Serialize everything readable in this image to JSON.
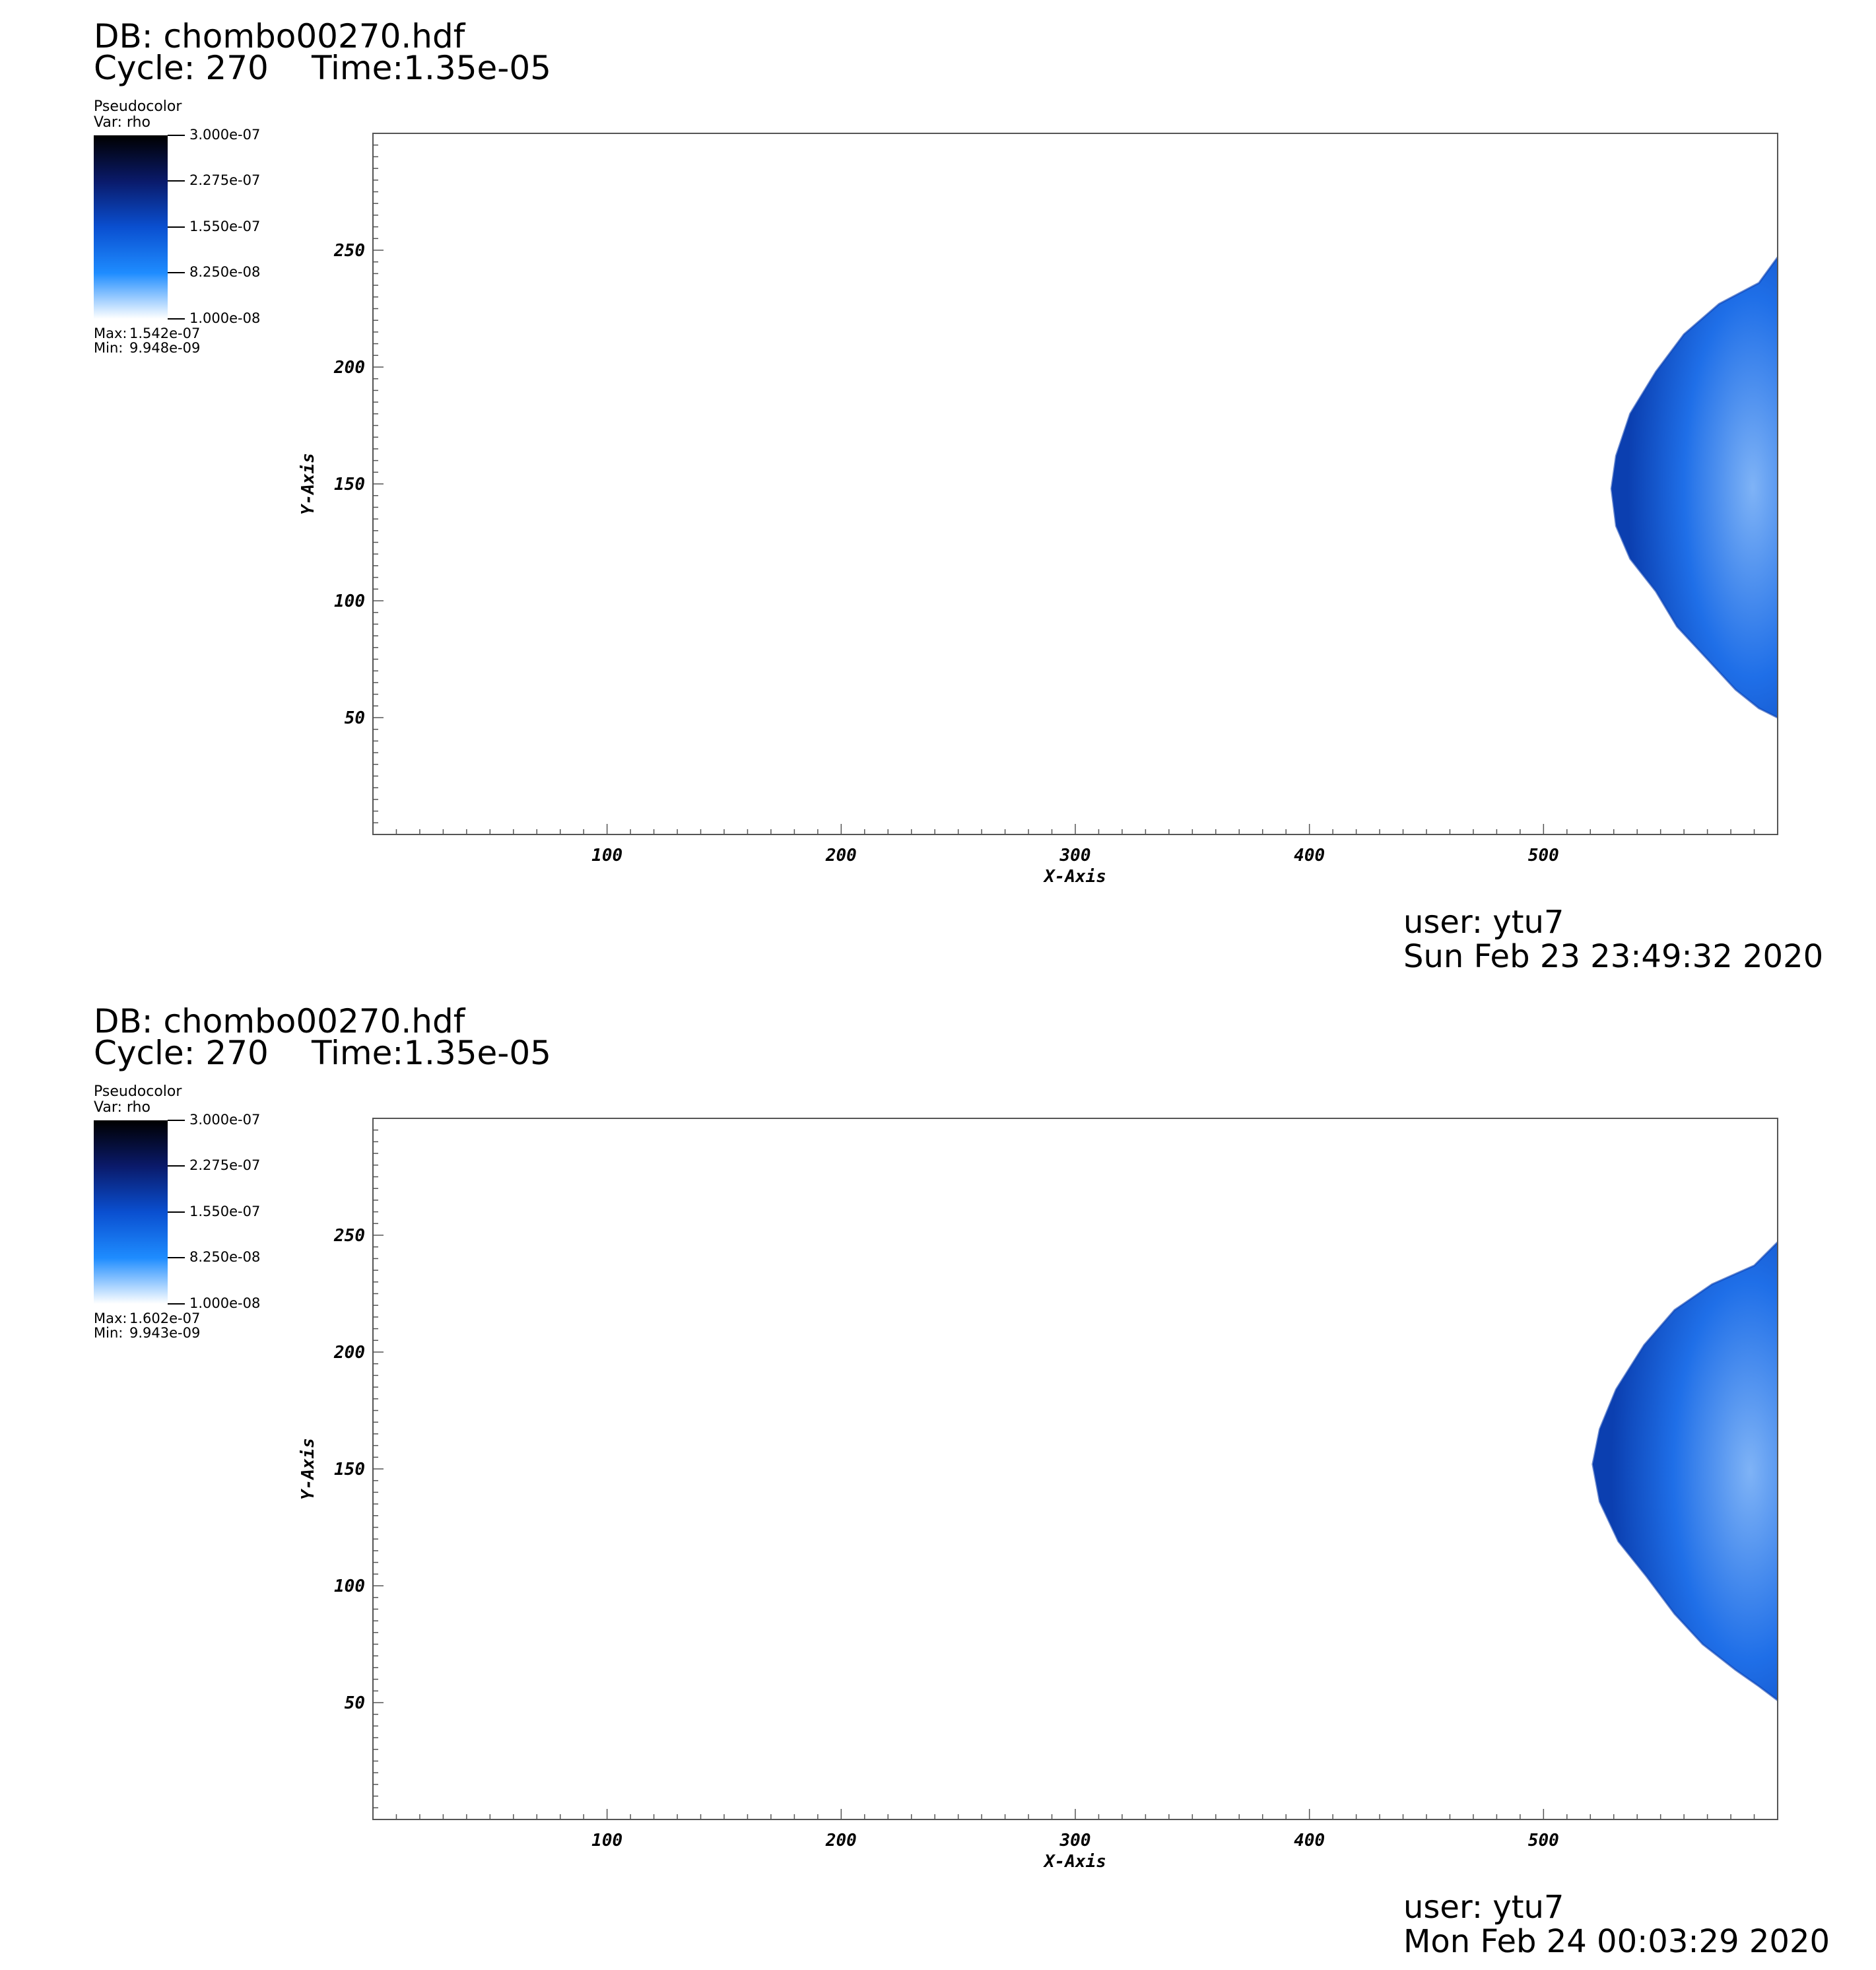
{
  "panels": [
    {
      "db_label": "DB: chombo00270.hdf",
      "cycle_label": "Cycle: 270",
      "time_label": "Time:1.35e-05",
      "legend": {
        "title": "Pseudocolor",
        "var": "Var: rho",
        "ticks": [
          "3.000e-07",
          "2.275e-07",
          "1.550e-07",
          "8.250e-08",
          "1.000e-08"
        ],
        "max_label": "Max:",
        "max_value": "1.542e-07",
        "min_label": "Min:",
        "min_value": "9.948e-09",
        "colors": [
          "#000000",
          "#0a1a6a",
          "#0a4fd0",
          "#1e8cff",
          "#ffffff"
        ]
      },
      "footer": {
        "user": "user: ytu7",
        "date": "Sun Feb 23 23:49:32 2020"
      }
    },
    {
      "db_label": "DB: chombo00270.hdf",
      "cycle_label": "Cycle: 270",
      "time_label": "Time:1.35e-05",
      "legend": {
        "title": "Pseudocolor",
        "var": "Var: rho",
        "ticks": [
          "3.000e-07",
          "2.275e-07",
          "1.550e-07",
          "8.250e-08",
          "1.000e-08"
        ],
        "max_label": "Max:",
        "max_value": "1.602e-07",
        "min_label": "Min:",
        "min_value": "9.943e-09",
        "colors": [
          "#000000",
          "#0a1a6a",
          "#0a4fd0",
          "#1e8cff",
          "#ffffff"
        ]
      },
      "footer": {
        "user": "user: ytu7",
        "date": "Mon Feb 24 00:03:29 2020"
      }
    }
  ],
  "chart_data": [
    {
      "type": "heatmap",
      "xlabel": "X-Axis",
      "ylabel": "Y-Axis",
      "xlim": [
        0,
        600
      ],
      "ylim": [
        0,
        300
      ],
      "xticks": [
        "100",
        "200",
        "300",
        "400",
        "500"
      ],
      "yticks": [
        "50",
        "100",
        "150",
        "200",
        "250"
      ],
      "grid": false,
      "colors": {
        "fill": "#1f6fe8",
        "dark": "#0b3fb0",
        "light": "#7fb3f6"
      },
      "front_outline": [
        [
          600,
          247
        ],
        [
          592,
          236
        ],
        [
          575,
          227
        ],
        [
          560,
          214
        ],
        [
          548,
          198
        ],
        [
          537,
          180
        ],
        [
          531,
          162
        ],
        [
          529,
          148
        ],
        [
          531,
          132
        ],
        [
          537,
          118
        ],
        [
          548,
          104
        ],
        [
          557,
          89
        ],
        [
          570,
          75
        ],
        [
          582,
          62
        ],
        [
          592,
          54
        ],
        [
          600,
          50
        ]
      ]
    },
    {
      "type": "heatmap",
      "xlabel": "X-Axis",
      "ylabel": "Y-Axis",
      "xlim": [
        0,
        600
      ],
      "ylim": [
        0,
        300
      ],
      "xticks": [
        "100",
        "200",
        "300",
        "400",
        "500"
      ],
      "yticks": [
        "50",
        "100",
        "150",
        "200",
        "250"
      ],
      "grid": false,
      "colors": {
        "fill": "#1f6fe8",
        "dark": "#0b3fb0",
        "light": "#7fb3f6"
      },
      "front_outline": [
        [
          600,
          247
        ],
        [
          590,
          237
        ],
        [
          572,
          229
        ],
        [
          556,
          218
        ],
        [
          543,
          203
        ],
        [
          531,
          184
        ],
        [
          524,
          167
        ],
        [
          521,
          152
        ],
        [
          524,
          136
        ],
        [
          532,
          119
        ],
        [
          544,
          104
        ],
        [
          556,
          88
        ],
        [
          568,
          75
        ],
        [
          582,
          64
        ],
        [
          592,
          57
        ],
        [
          600,
          51
        ]
      ]
    }
  ]
}
